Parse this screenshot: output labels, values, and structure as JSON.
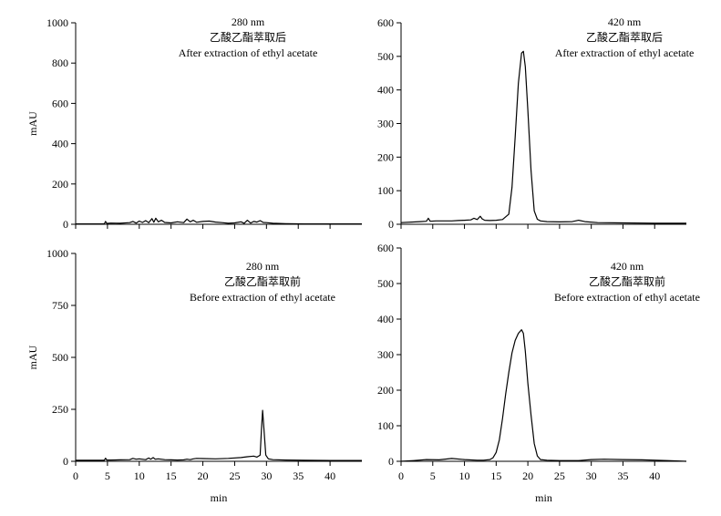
{
  "panels_title": "",
  "chart_data": [
    {
      "type": "line",
      "annotation": [
        "280 nm",
        "乙酸乙酯萃取后",
        "After extraction of ethyl acetate"
      ],
      "ylabel": "mAU",
      "xlabel": "",
      "xlim": [
        0,
        45
      ],
      "ylim": [
        0,
        1000
      ],
      "xticks": [],
      "yticks": [
        0,
        200,
        400,
        600,
        800,
        1000
      ],
      "series": [
        {
          "x": [
            0,
            4.5,
            4.7,
            4.9,
            5.5,
            7,
            8.5,
            9,
            9.5,
            10,
            10.5,
            11,
            11.5,
            12,
            12.3,
            12.6,
            13,
            13.5,
            14,
            15,
            16,
            17,
            17.5,
            18,
            18.5,
            19,
            20,
            21,
            22,
            23,
            24,
            25,
            26,
            26.5,
            27,
            27.5,
            28,
            28.5,
            29,
            29.5,
            30,
            31,
            33,
            36,
            40,
            45
          ],
          "y": [
            2,
            2,
            14,
            4,
            6,
            5,
            8,
            14,
            6,
            16,
            9,
            18,
            8,
            28,
            10,
            30,
            12,
            20,
            9,
            7,
            12,
            8,
            26,
            12,
            20,
            10,
            14,
            16,
            11,
            8,
            5,
            7,
            12,
            5,
            20,
            6,
            14,
            11,
            18,
            9,
            8,
            5,
            3,
            2,
            2,
            2
          ]
        }
      ]
    },
    {
      "type": "line",
      "annotation": [
        "420 nm",
        "乙酸乙酯萃取后",
        "After extraction of ethyl acetate"
      ],
      "ylabel": "",
      "xlabel": "",
      "xlim": [
        0,
        45
      ],
      "ylim": [
        0,
        600
      ],
      "xticks": [],
      "yticks": [
        0,
        100,
        200,
        300,
        400,
        500,
        600
      ],
      "series": [
        {
          "x": [
            0,
            3,
            4,
            4.3,
            4.6,
            5.5,
            8,
            9,
            10,
            11,
            11.5,
            12,
            12.5,
            12.8,
            13.2,
            14,
            15,
            16,
            17,
            17.5,
            18,
            18.5,
            19,
            19.3,
            19.6,
            20,
            20.5,
            21,
            21.5,
            22,
            23,
            25,
            27,
            28,
            29,
            31,
            35,
            40,
            45
          ],
          "y": [
            5,
            8,
            9,
            18,
            9,
            10,
            10,
            11,
            12,
            13,
            18,
            14,
            24,
            16,
            12,
            11,
            12,
            14,
            30,
            110,
            260,
            420,
            510,
            515,
            470,
            340,
            160,
            40,
            15,
            10,
            8,
            7,
            8,
            12,
            8,
            5,
            4,
            3,
            3
          ]
        }
      ]
    },
    {
      "type": "line",
      "annotation": [
        "280 nm",
        "乙酸乙酯萃取前",
        "Before extraction of ethyl acetate"
      ],
      "ylabel": "mAU",
      "xlabel": "min",
      "xlim": [
        0,
        45
      ],
      "ylim": [
        0,
        1000
      ],
      "xticks": [
        0,
        5,
        10,
        15,
        20,
        25,
        30,
        35,
        40
      ],
      "yticks": [
        0,
        250,
        500,
        750,
        1000
      ],
      "series": [
        {
          "x": [
            0,
            4.5,
            4.7,
            4.9,
            5.5,
            7,
            8.5,
            9,
            9.5,
            10,
            11,
            11.5,
            11.8,
            12.2,
            12.5,
            13,
            14,
            15,
            16,
            17,
            17.5,
            18,
            18.5,
            19,
            20,
            22,
            24,
            26,
            27,
            28,
            28.5,
            29,
            29.2,
            29.4,
            29.6,
            29.9,
            30.3,
            31,
            33,
            36,
            40,
            45
          ],
          "y": [
            5,
            5,
            15,
            6,
            6,
            7,
            8,
            14,
            10,
            12,
            8,
            16,
            10,
            18,
            10,
            12,
            8,
            7,
            6,
            7,
            10,
            8,
            12,
            14,
            13,
            12,
            14,
            18,
            22,
            25,
            20,
            30,
            150,
            245,
            160,
            30,
            12,
            8,
            6,
            5,
            4,
            4
          ]
        }
      ]
    },
    {
      "type": "line",
      "annotation": [
        "420 nm",
        "乙酸乙酯萃取前",
        "Before extraction of ethyl acetate"
      ],
      "ylabel": "",
      "xlabel": "min",
      "xlim": [
        0,
        45
      ],
      "ylim": [
        0,
        600
      ],
      "xticks": [
        0,
        5,
        10,
        15,
        20,
        25,
        30,
        35,
        40
      ],
      "yticks": [
        0,
        100,
        200,
        300,
        400,
        500,
        600
      ],
      "series": [
        {
          "x": [
            0,
            2,
            4,
            6,
            8,
            10,
            12,
            13,
            14,
            14.5,
            15,
            15.5,
            16,
            16.5,
            17,
            17.5,
            18,
            18.5,
            19,
            19.3,
            19.6,
            20,
            20.5,
            21,
            21.5,
            22,
            23,
            25,
            28,
            30,
            32,
            35,
            38,
            42,
            45
          ],
          "y": [
            0,
            2,
            5,
            4,
            8,
            5,
            3,
            3,
            5,
            10,
            25,
            60,
            120,
            190,
            250,
            305,
            340,
            360,
            370,
            360,
            310,
            220,
            130,
            50,
            15,
            5,
            3,
            2,
            2,
            5,
            6,
            5,
            4,
            2,
            0
          ]
        }
      ]
    }
  ]
}
